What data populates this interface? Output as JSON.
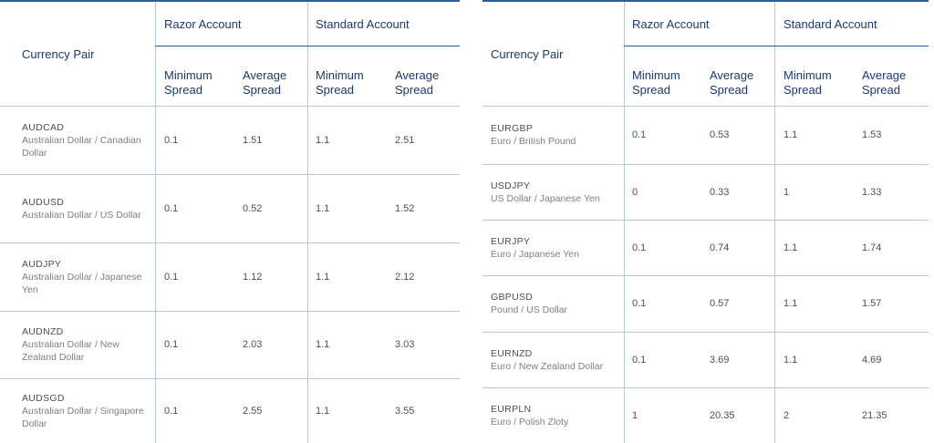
{
  "headers": {
    "currency_pair": "Currency Pair",
    "razor_account": "Razor Account",
    "standard_account": "Standard Account",
    "minimum": "Minimum",
    "average": "Average",
    "spread": "Spread"
  },
  "left_table": {
    "rows": [
      {
        "code": "AUDCAD",
        "name": "Australian Dollar / Canadian Dollar",
        "razor_min": "0.1",
        "razor_avg": "1.51",
        "std_min": "1.1",
        "std_avg": "2.51"
      },
      {
        "code": "AUDUSD",
        "name": "Australian Dollar / US Dollar",
        "razor_min": "0.1",
        "razor_avg": "0.52",
        "std_min": "1.1",
        "std_avg": "1.52"
      },
      {
        "code": "AUDJPY",
        "name": "Australian Dollar / Japanese Yen",
        "razor_min": "0.1",
        "razor_avg": "1.12",
        "std_min": "1.1",
        "std_avg": "2.12"
      },
      {
        "code": "AUDNZD",
        "name": "Australian Dollar / New Zealand Dollar",
        "razor_min": "0.1",
        "razor_avg": "2.03",
        "std_min": "1.1",
        "std_avg": "3.03"
      },
      {
        "code": "AUDSGD",
        "name": "Australian Dollar / Singapore Dollar",
        "razor_min": "0.1",
        "razor_avg": "2.55",
        "std_min": "1.1",
        "std_avg": "3.55"
      }
    ]
  },
  "right_table": {
    "rows": [
      {
        "code": "EURGBP",
        "name": "Euro / British Pound",
        "razor_min": "0.1",
        "razor_avg": "0.53",
        "std_min": "1.1",
        "std_avg": "1.53"
      },
      {
        "code": "USDJPY",
        "name": "US Dollar / Japanese Yen",
        "razor_min": "0",
        "razor_avg": "0.33",
        "std_min": "1",
        "std_avg": "1.33"
      },
      {
        "code": "EURJPY",
        "name": "Euro / Japanese Yen",
        "razor_min": "0.1",
        "razor_avg": "0.74",
        "std_min": "1.1",
        "std_avg": "1.74"
      },
      {
        "code": "GBPUSD",
        "name": "Pound / US Dollar",
        "razor_min": "0.1",
        "razor_avg": "0.57",
        "std_min": "1.1",
        "std_avg": "1.57"
      },
      {
        "code": "EURNZD",
        "name": "Euro / New Zealand Dollar",
        "razor_min": "0.1",
        "razor_avg": "3.69",
        "std_min": "1.1",
        "std_avg": "4.69"
      },
      {
        "code": "EURPLN",
        "name": "Euro / Polish Zloty",
        "razor_min": "1",
        "razor_avg": "20.35",
        "std_min": "2",
        "std_avg": "21.35"
      }
    ]
  },
  "colors": {
    "accent": "#2f5d9b",
    "header_text": "#1a3a6b",
    "body_text": "#4a4f57",
    "muted_text": "#7a7f87",
    "grid": "#b9c7da"
  }
}
